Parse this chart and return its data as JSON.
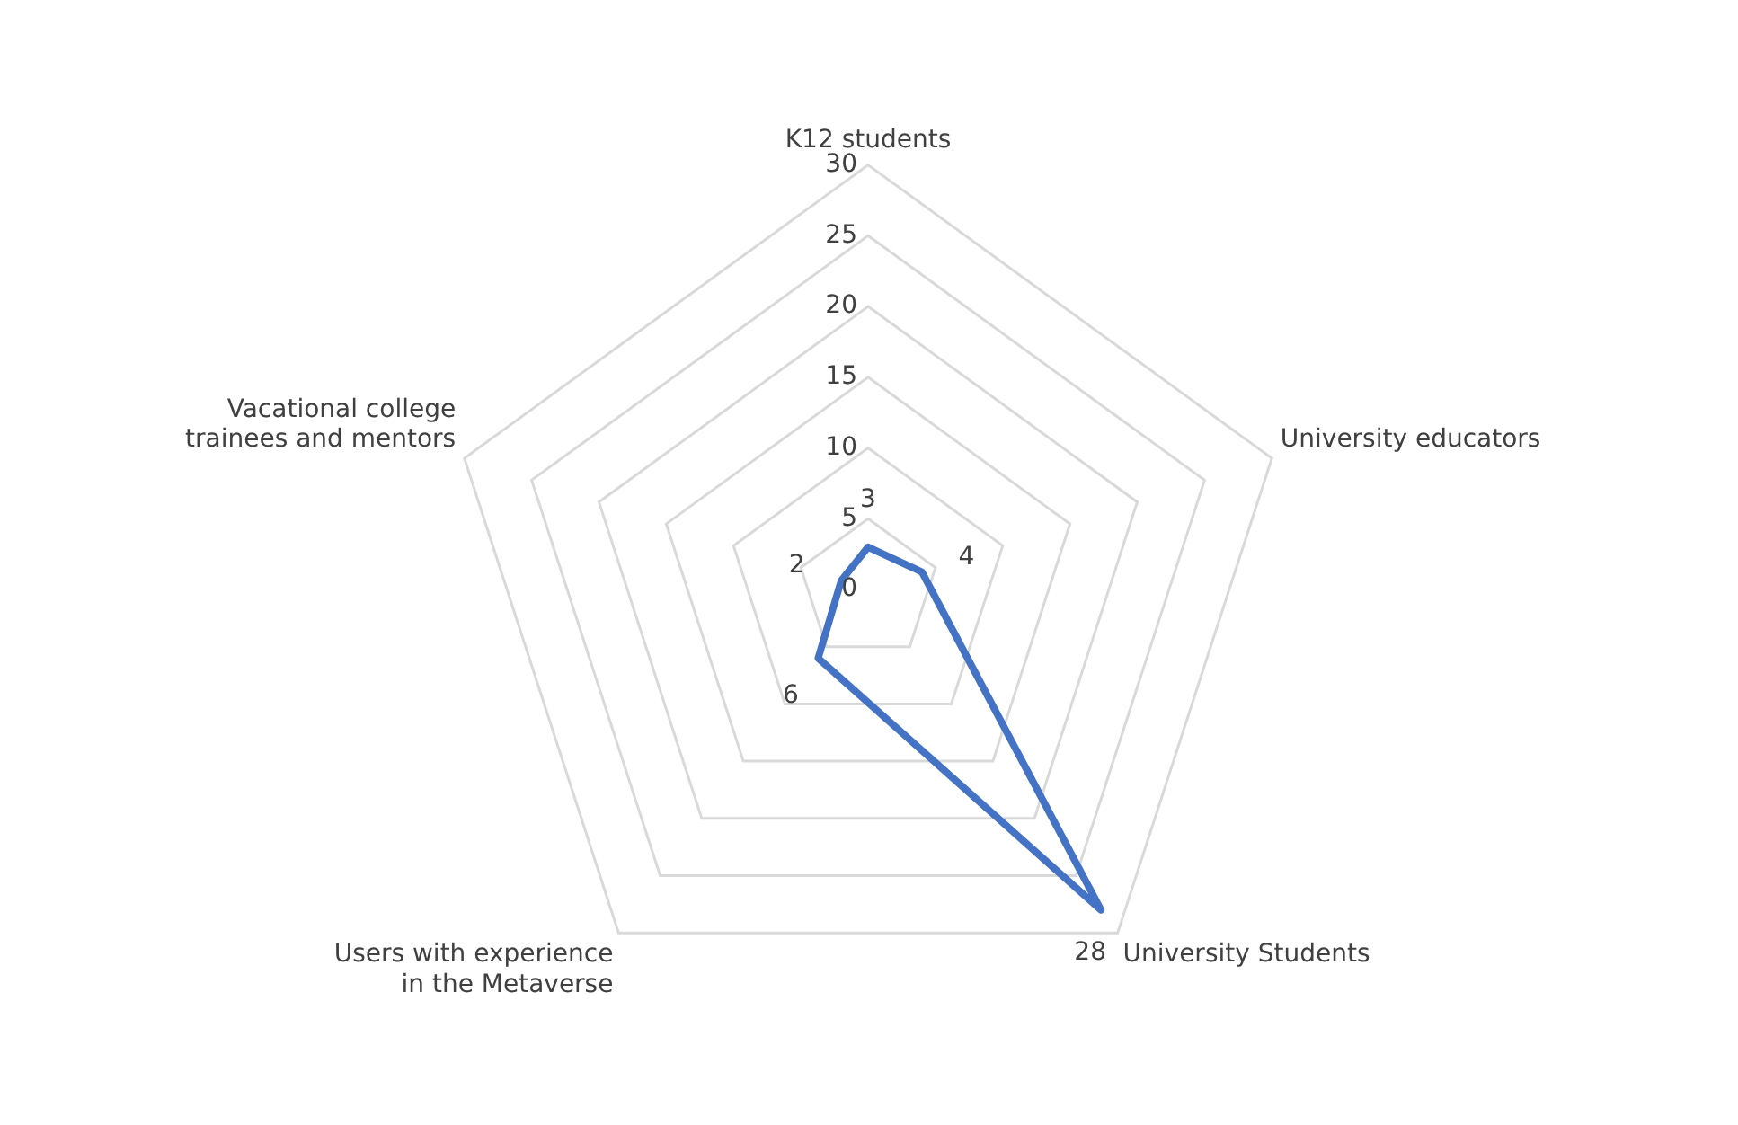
{
  "chart_data": {
    "type": "radar",
    "categories": [
      "K12 students",
      "University educators",
      "University Students",
      "Users with experience in the Metaverse",
      "Vacational college trainees and mentors"
    ],
    "series": [
      {
        "color": "#4472c4",
        "values": [
          3,
          4,
          28,
          6,
          2
        ]
      }
    ],
    "ylim": [
      0,
      30
    ],
    "yticks": [
      0,
      5,
      10,
      15,
      20,
      25,
      30
    ],
    "grid": true,
    "legend": false,
    "marker": "none",
    "data_labels": true
  }
}
